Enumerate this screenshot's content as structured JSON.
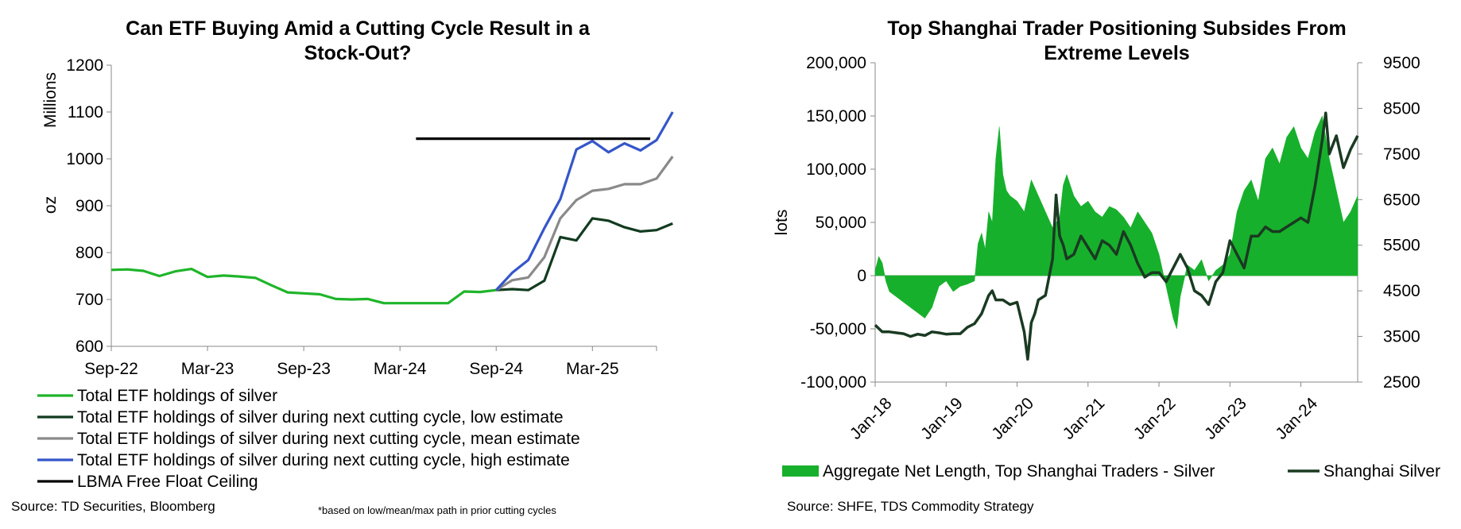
{
  "colors": {
    "etf": "#1fb52a",
    "low": "#123b1f",
    "mean": "#8a8a8a",
    "high": "#3556c9",
    "ceiling": "#000000",
    "area": "#17b02c",
    "price": "#1a3a22"
  },
  "chart_data": [
    {
      "type": "line",
      "title": "Can ETF Buying Amid a Cutting Cycle Result in a Stock-Out?",
      "title_lines": [
        "Can ETF Buying Amid a Cutting Cycle Result in a",
        "Stock-Out?"
      ],
      "ylabel_top": "Millions",
      "ylabel_bottom": "oz",
      "ylim": [
        600,
        1200
      ],
      "yticks": [
        "600",
        "700",
        "800",
        "900",
        "1000",
        "1100",
        "1200"
      ],
      "xticks": [
        "Sep-22",
        "Mar-23",
        "Sep-23",
        "Mar-24",
        "Sep-24",
        "Mar-25"
      ],
      "x_axis_months": "monthly from Sep-22 to Jul-25",
      "grid": false,
      "legend_position": "bottom",
      "series": [
        {
          "name": "Total ETF holdings of silver",
          "key": "etf",
          "start_month": "Sep-22",
          "values": [
            763,
            764,
            761,
            750,
            760,
            765,
            748,
            751,
            749,
            746,
            730,
            715,
            713,
            711,
            701,
            700,
            701,
            692,
            692,
            692,
            692,
            692,
            717,
            716,
            720
          ]
        },
        {
          "name": "Total ETF holdings of silver during next cutting cycle, low estimate",
          "key": "low",
          "start_month": "Sep-24",
          "values": [
            720,
            722,
            720,
            740,
            833,
            826,
            873,
            868,
            854,
            845,
            848,
            862
          ]
        },
        {
          "name": "Total ETF holdings of silver during next cutting cycle, mean estimate",
          "key": "mean",
          "start_month": "Sep-24",
          "values": [
            720,
            741,
            747,
            790,
            873,
            912,
            932,
            936,
            946,
            946,
            958,
            1005
          ]
        },
        {
          "name": "Total ETF holdings of silver during next cutting cycle, high estimate",
          "key": "high",
          "start_month": "Sep-24",
          "values": [
            720,
            757,
            784,
            852,
            914,
            1020,
            1038,
            1014,
            1033,
            1018,
            1040,
            1100
          ]
        },
        {
          "name": "LBMA Free Float Ceiling",
          "key": "ceiling",
          "start_month": "Apr-24",
          "end_month": "Jul-25",
          "value": 1043
        }
      ],
      "source": "Source: TD Securities, Bloomberg",
      "note": "*based on low/mean/max path in prior cutting cycles"
    },
    {
      "type": "area",
      "title": "Top Shanghai Trader Positioning Subsides From Extreme Levels",
      "title_lines": [
        "Top Shanghai Trader Positioning Subsides From",
        "Extreme Levels"
      ],
      "ylabel": "lots",
      "ylim_left": [
        -100000,
        200000
      ],
      "yticks_left": [
        "-100,000",
        "-50,000",
        "0",
        "50,000",
        "100,000",
        "150,000",
        "200,000"
      ],
      "ylim_right": [
        2500,
        9500
      ],
      "yticks_right": [
        "2500",
        "3500",
        "4500",
        "5500",
        "6500",
        "7500",
        "8500",
        "9500"
      ],
      "xticks": [
        "Jan-18",
        "Jan-19",
        "Jan-20",
        "Jan-21",
        "Jan-22",
        "Jan-23",
        "Jan-24"
      ],
      "xlim": [
        2018.0,
        2024.8
      ],
      "grid": false,
      "legend_position": "bottom",
      "series": [
        {
          "name": "Aggregate Net Length, Top Shanghai Traders - Silver",
          "key": "area",
          "axis": "left",
          "x": [
            2018.0,
            2018.05,
            2018.1,
            2018.15,
            2018.2,
            2018.3,
            2018.4,
            2018.5,
            2018.6,
            2018.7,
            2018.8,
            2018.9,
            2019.0,
            2019.1,
            2019.2,
            2019.3,
            2019.4,
            2019.45,
            2019.5,
            2019.55,
            2019.6,
            2019.65,
            2019.7,
            2019.75,
            2019.8,
            2019.85,
            2019.9,
            2020.0,
            2020.1,
            2020.2,
            2020.3,
            2020.4,
            2020.5,
            2020.6,
            2020.65,
            2020.7,
            2020.8,
            2020.9,
            2021.0,
            2021.1,
            2021.2,
            2021.3,
            2021.4,
            2021.5,
            2021.6,
            2021.7,
            2021.8,
            2021.9,
            2022.0,
            2022.1,
            2022.2,
            2022.25,
            2022.3,
            2022.4,
            2022.5,
            2022.6,
            2022.7,
            2022.8,
            2022.9,
            2023.0,
            2023.1,
            2023.2,
            2023.3,
            2023.4,
            2023.5,
            2023.6,
            2023.7,
            2023.8,
            2023.9,
            2024.0,
            2024.1,
            2024.2,
            2024.3,
            2024.4,
            2024.5,
            2024.6,
            2024.7,
            2024.8
          ],
          "values": [
            5000,
            18000,
            12000,
            -5000,
            -15000,
            -20000,
            -25000,
            -30000,
            -35000,
            -40000,
            -30000,
            -10000,
            -5000,
            -15000,
            -10000,
            -8000,
            -5000,
            30000,
            40000,
            25000,
            60000,
            50000,
            110000,
            140000,
            95000,
            80000,
            75000,
            70000,
            60000,
            90000,
            75000,
            60000,
            45000,
            55000,
            85000,
            95000,
            75000,
            65000,
            70000,
            60000,
            55000,
            65000,
            62000,
            55000,
            45000,
            60000,
            50000,
            40000,
            20000,
            -10000,
            -40000,
            -50000,
            -20000,
            10000,
            5000,
            15000,
            -5000,
            5000,
            10000,
            20000,
            60000,
            80000,
            90000,
            70000,
            110000,
            120000,
            105000,
            130000,
            140000,
            120000,
            110000,
            135000,
            150000,
            110000,
            80000,
            50000,
            60000,
            75000
          ]
        },
        {
          "name": "Shanghai Silver",
          "key": "price",
          "axis": "right",
          "x": [
            2018.0,
            2018.1,
            2018.2,
            2018.3,
            2018.4,
            2018.5,
            2018.6,
            2018.7,
            2018.8,
            2018.9,
            2019.0,
            2019.1,
            2019.2,
            2019.3,
            2019.4,
            2019.5,
            2019.6,
            2019.65,
            2019.7,
            2019.8,
            2019.9,
            2020.0,
            2020.1,
            2020.15,
            2020.2,
            2020.25,
            2020.3,
            2020.4,
            2020.5,
            2020.55,
            2020.6,
            2020.65,
            2020.7,
            2020.8,
            2020.9,
            2021.0,
            2021.1,
            2021.2,
            2021.3,
            2021.4,
            2021.5,
            2021.6,
            2021.7,
            2021.8,
            2021.9,
            2022.0,
            2022.1,
            2022.2,
            2022.3,
            2022.4,
            2022.5,
            2022.6,
            2022.7,
            2022.8,
            2022.9,
            2023.0,
            2023.1,
            2023.2,
            2023.3,
            2023.4,
            2023.5,
            2023.6,
            2023.7,
            2023.8,
            2023.9,
            2024.0,
            2024.1,
            2024.2,
            2024.3,
            2024.35,
            2024.4,
            2024.5,
            2024.6,
            2024.7,
            2024.8
          ],
          "values": [
            3750,
            3600,
            3600,
            3580,
            3560,
            3500,
            3550,
            3520,
            3600,
            3580,
            3550,
            3560,
            3560,
            3700,
            3780,
            4000,
            4400,
            4500,
            4300,
            4300,
            4200,
            4250,
            3600,
            3000,
            3800,
            4000,
            4300,
            4400,
            5200,
            6600,
            5700,
            5500,
            5200,
            5300,
            5700,
            5450,
            5200,
            5600,
            5500,
            5300,
            5800,
            5500,
            5100,
            4800,
            4900,
            4900,
            4700,
            5000,
            5300,
            5000,
            4500,
            4400,
            4200,
            4700,
            4900,
            5600,
            5300,
            5000,
            5700,
            5700,
            5900,
            5800,
            5800,
            5900,
            6000,
            6100,
            6000,
            6800,
            7800,
            8400,
            7500,
            7900,
            7200,
            7600,
            7900
          ]
        }
      ],
      "source": "Source: SHFE, TDS Commodity Strategy"
    }
  ]
}
